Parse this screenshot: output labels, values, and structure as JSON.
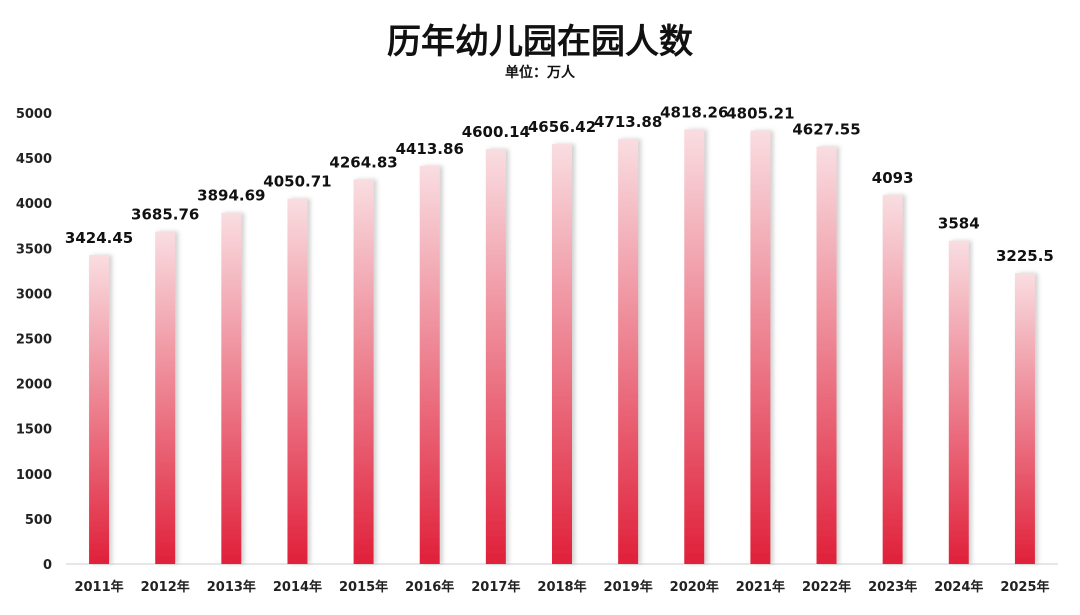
{
  "chart_data": {
    "type": "bar",
    "title": "历年幼儿园在园人数",
    "subtitle": "单位：万人",
    "categories": [
      "2011年",
      "2012年",
      "2013年",
      "2014年",
      "2015年",
      "2016年",
      "2017年",
      "2018年",
      "2019年",
      "2020年",
      "2021年",
      "2022年",
      "2023年",
      "2024年",
      "2025年"
    ],
    "values": [
      3424.45,
      3685.76,
      3894.69,
      4050.71,
      4264.83,
      4413.86,
      4600.14,
      4656.42,
      4713.88,
      4818.26,
      4805.21,
      4627.55,
      4093,
      3584,
      3225.5
    ],
    "value_labels": [
      "3424.45",
      "3685.76",
      "3894.69",
      "4050.71",
      "4264.83",
      "4413.86",
      "4600.14",
      "4656.42",
      "4713.88",
      "4818.26",
      "4805.21",
      "4627.55",
      "4093",
      "3584",
      "3225.5"
    ],
    "ylim": [
      0,
      5000
    ],
    "yticks": [
      0,
      500,
      1000,
      1500,
      2000,
      2500,
      3000,
      3500,
      4000,
      4500,
      5000
    ],
    "grid": false,
    "colors": {
      "bar_top": "#f9dde1",
      "bar_bottom": "#e0203a"
    }
  }
}
